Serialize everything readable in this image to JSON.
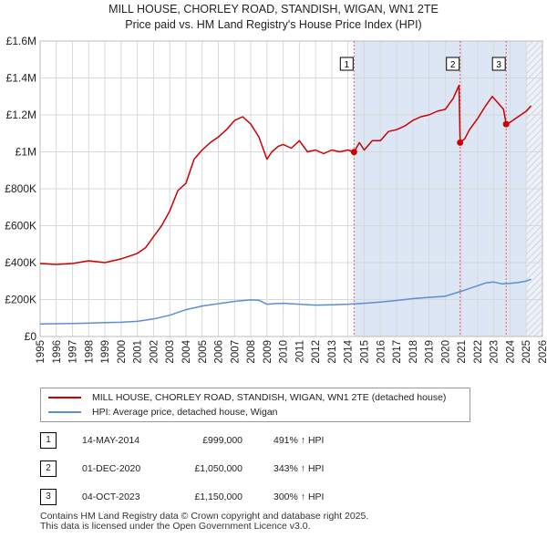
{
  "title": {
    "line1": "MILL HOUSE, CHORLEY ROAD, STANDISH, WIGAN, WN1 2TE",
    "line2": "Price paid vs. HM Land Registry's House Price Index (HPI)"
  },
  "colors": {
    "property": "#cc0000",
    "hpi": "#5b8fd0",
    "shade": "#dde6f5",
    "grid": "#d8d8d8",
    "marker_line": "#e06060"
  },
  "chart_data": {
    "type": "line",
    "ylim": [
      0,
      1600000
    ],
    "xlim": [
      1995,
      2026
    ],
    "y_ticks": [
      {
        "value": 0,
        "label": "£0"
      },
      {
        "value": 200000,
        "label": "£200K"
      },
      {
        "value": 400000,
        "label": "£400K"
      },
      {
        "value": 600000,
        "label": "£600K"
      },
      {
        "value": 800000,
        "label": "£800K"
      },
      {
        "value": 1000000,
        "label": "£1M"
      },
      {
        "value": 1200000,
        "label": "£1.2M"
      },
      {
        "value": 1400000,
        "label": "£1.4M"
      },
      {
        "value": 1600000,
        "label": "£1.6M"
      }
    ],
    "x_ticks": [
      "1995",
      "1996",
      "1997",
      "1998",
      "1999",
      "2000",
      "2001",
      "2002",
      "2003",
      "2004",
      "2005",
      "2006",
      "2007",
      "2008",
      "2009",
      "2010",
      "2011",
      "2012",
      "2013",
      "2014",
      "2015",
      "2016",
      "2017",
      "2018",
      "2019",
      "2020",
      "2021",
      "2022",
      "2023",
      "2024",
      "2025",
      "2026"
    ],
    "shaded_from": 2014.37,
    "hatched_from": 2025.0,
    "series": [
      {
        "name": "MILL HOUSE, CHORLEY ROAD, STANDISH, WIGAN, WN1 2TE (detached house)",
        "x": [
          1995.0,
          1996.0,
          1997.0,
          1998.0,
          1999.0,
          2000.0,
          2001.0,
          2001.5,
          2002.0,
          2002.5,
          2003.0,
          2003.5,
          2004.0,
          2004.5,
          2005.0,
          2005.5,
          2006.0,
          2006.5,
          2007.0,
          2007.5,
          2008.0,
          2008.5,
          2009.0,
          2009.3,
          2009.7,
          2010.0,
          2010.5,
          2011.0,
          2011.5,
          2012.0,
          2012.5,
          2013.0,
          2013.5,
          2014.0,
          2014.37,
          2014.7,
          2015.0,
          2015.5,
          2016.0,
          2016.5,
          2017.0,
          2017.5,
          2018.0,
          2018.5,
          2019.0,
          2019.5,
          2020.0,
          2020.5,
          2020.85,
          2020.92,
          2021.2,
          2021.5,
          2022.0,
          2022.5,
          2022.9,
          2023.3,
          2023.6,
          2023.76,
          2024.0,
          2024.5,
          2025.0,
          2025.3
        ],
        "values": [
          395000,
          390000,
          395000,
          410000,
          400000,
          420000,
          450000,
          480000,
          540000,
          600000,
          680000,
          790000,
          830000,
          960000,
          1010000,
          1050000,
          1080000,
          1120000,
          1170000,
          1190000,
          1150000,
          1080000,
          960000,
          1000000,
          1030000,
          1040000,
          1020000,
          1060000,
          1000000,
          1010000,
          990000,
          1010000,
          1000000,
          1010000,
          999000,
          1050000,
          1010000,
          1060000,
          1060000,
          1110000,
          1120000,
          1140000,
          1170000,
          1190000,
          1200000,
          1220000,
          1230000,
          1290000,
          1360000,
          1050000,
          1070000,
          1120000,
          1180000,
          1250000,
          1300000,
          1260000,
          1230000,
          1150000,
          1160000,
          1190000,
          1220000,
          1250000
        ]
      },
      {
        "name": "HPI: Average price, detached house, Wigan",
        "x": [
          1995.0,
          1996.0,
          1997.0,
          1998.0,
          1999.0,
          2000.0,
          2001.0,
          2002.0,
          2003.0,
          2004.0,
          2005.0,
          2006.0,
          2007.0,
          2008.0,
          2008.5,
          2009.0,
          2009.5,
          2010.0,
          2011.0,
          2012.0,
          2013.0,
          2014.0,
          2015.0,
          2016.0,
          2017.0,
          2018.0,
          2019.0,
          2020.0,
          2021.0,
          2022.0,
          2022.5,
          2023.0,
          2023.5,
          2024.0,
          2024.5,
          2025.0,
          2025.3
        ],
        "values": [
          68000,
          69000,
          70000,
          72000,
          75000,
          77000,
          82000,
          95000,
          115000,
          145000,
          165000,
          178000,
          190000,
          198000,
          196000,
          175000,
          178000,
          180000,
          175000,
          170000,
          172000,
          175000,
          180000,
          186000,
          195000,
          205000,
          212000,
          218000,
          245000,
          275000,
          290000,
          295000,
          285000,
          288000,
          292000,
          300000,
          310000
        ]
      }
    ],
    "sales": [
      {
        "n": "1",
        "x": 2014.37,
        "value": 999000
      },
      {
        "n": "2",
        "x": 2020.92,
        "value": 1050000
      },
      {
        "n": "3",
        "x": 2023.76,
        "value": 1150000
      }
    ]
  },
  "legend": {
    "property": "MILL HOUSE, CHORLEY ROAD, STANDISH, WIGAN, WN1 2TE (detached house)",
    "hpi": "HPI: Average price, detached house, Wigan"
  },
  "transactions": [
    {
      "n": "1",
      "date": "14-MAY-2014",
      "price": "£999,000",
      "hpi": "491% ↑ HPI"
    },
    {
      "n": "2",
      "date": "01-DEC-2020",
      "price": "£1,050,000",
      "hpi": "343% ↑ HPI"
    },
    {
      "n": "3",
      "date": "04-OCT-2023",
      "price": "£1,150,000",
      "hpi": "300% ↑ HPI"
    }
  ],
  "footer": {
    "line1": "Contains HM Land Registry data © Crown copyright and database right 2025.",
    "line2": "This data is licensed under the Open Government Licence v3.0."
  }
}
